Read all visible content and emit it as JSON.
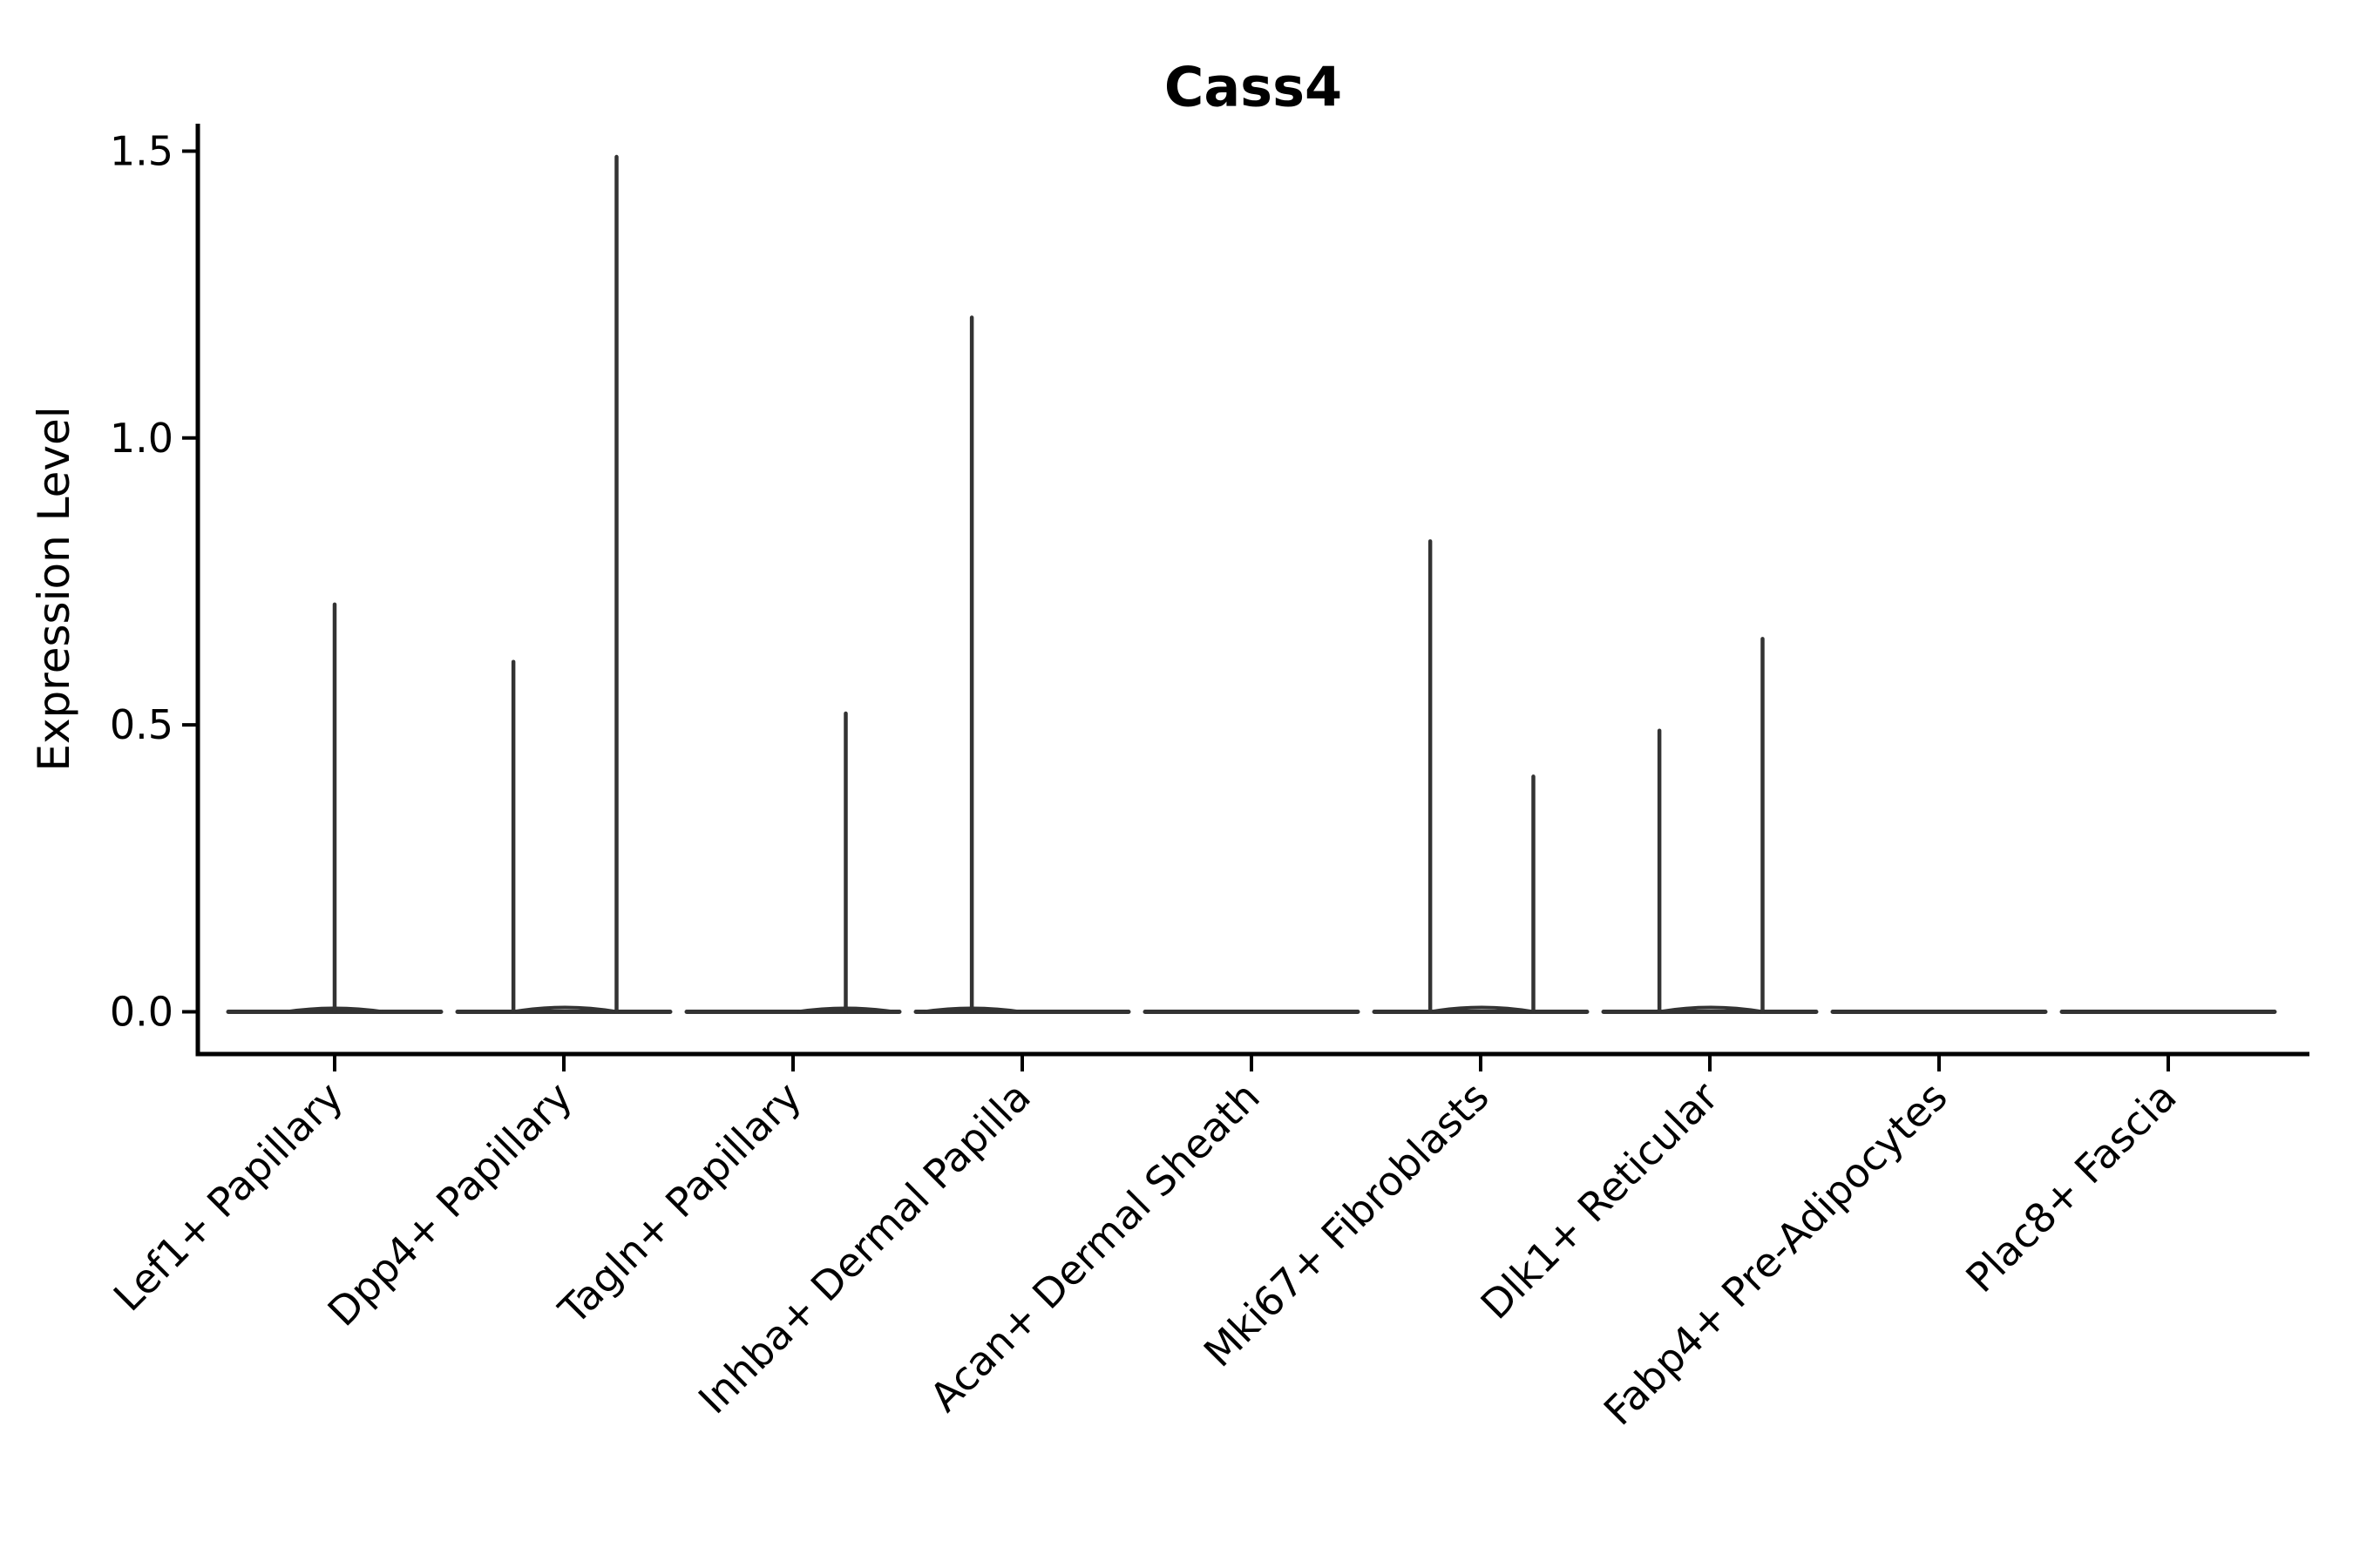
{
  "page": {
    "background": "#ffffff"
  },
  "chart_data": {
    "type": "violin",
    "title": "Cass4",
    "ylabel": "Expression Level",
    "xlabel": "",
    "yticks": [
      0.0,
      0.5,
      1.0,
      1.5
    ],
    "ylim": [
      -0.07,
      1.55
    ],
    "grid": false,
    "legend": "none",
    "colors": {
      "violin_stroke": "#333333",
      "axis": "#000000",
      "text": "#000000",
      "background": "#ffffff"
    },
    "categories": [
      "Lef1+ Papillary",
      "Dpp4+ Papillary",
      "Tagln+ Papillary",
      "Inhba+ Dermal Papilla",
      "Acan+ Dermal Sheath",
      "Mki67+ Fibroblasts",
      "Dlk1+ Reticular",
      "Fabp4+ Pre-Adipocytes",
      "Plac8+ Fascia"
    ],
    "violins": [
      {
        "category": "Lef1+ Papillary",
        "baseline_value": 0.0,
        "spikes": [
          {
            "x_offset": 0.0,
            "max": 0.71
          }
        ]
      },
      {
        "category": "Dpp4+ Papillary",
        "baseline_value": 0.0,
        "spikes": [
          {
            "x_offset": -0.22,
            "max": 0.61
          },
          {
            "x_offset": 0.23,
            "max": 1.49
          }
        ]
      },
      {
        "category": "Tagln+ Papillary",
        "baseline_value": 0.0,
        "spikes": [
          {
            "x_offset": 0.23,
            "max": 0.52
          }
        ]
      },
      {
        "category": "Inhba+ Dermal Papilla",
        "baseline_value": 0.0,
        "spikes": [
          {
            "x_offset": -0.22,
            "max": 1.21
          }
        ]
      },
      {
        "category": "Acan+ Dermal Sheath",
        "baseline_value": 0.0,
        "spikes": []
      },
      {
        "category": "Mki67+ Fibroblasts",
        "baseline_value": 0.0,
        "spikes": [
          {
            "x_offset": -0.22,
            "max": 0.82
          },
          {
            "x_offset": 0.23,
            "max": 0.41
          }
        ]
      },
      {
        "category": "Dlk1+ Reticular",
        "baseline_value": 0.0,
        "spikes": [
          {
            "x_offset": -0.22,
            "max": 0.49
          },
          {
            "x_offset": 0.23,
            "max": 0.65
          }
        ]
      },
      {
        "category": "Fabp4+ Pre-Adipocytes",
        "baseline_value": 0.0,
        "spikes": []
      },
      {
        "category": "Plac8+ Fascia",
        "baseline_value": 0.0,
        "spikes": []
      }
    ],
    "spike_x_offset_unit": "fraction_of_category_spacing",
    "violin_width_frac": 0.93
  }
}
